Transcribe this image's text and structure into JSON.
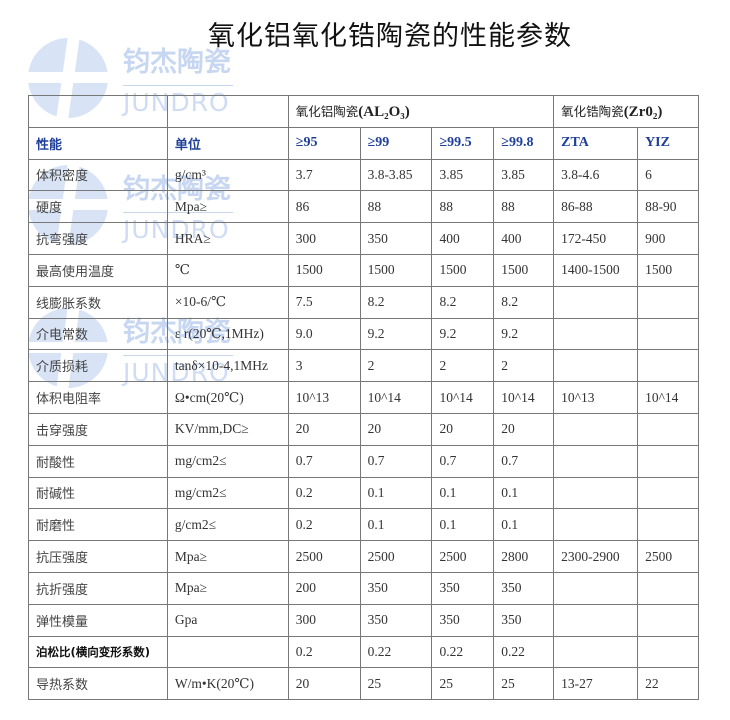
{
  "title": "氧化铝氧化锆陶瓷的性能参数",
  "watermark": {
    "cn": "钧杰陶瓷",
    "en": "JUNDRO"
  },
  "groups": {
    "alumina": "氧化铝陶瓷",
    "alumina_formula": "(AL₂O₃)",
    "zirconia": "氧化锆陶瓷",
    "zirconia_formula": "(Zr0₂)"
  },
  "header": [
    "性能",
    "单位",
    "≥95",
    "≥99",
    "≥99.5",
    "≥99.8",
    "ZTA",
    "YIZ"
  ],
  "rows": [
    [
      "体积密度",
      "g/cm³",
      "3.7",
      "3.8-3.85",
      "3.85",
      "3.85",
      "3.8-4.6",
      "6"
    ],
    [
      "硬度",
      "Mpa≥",
      "86",
      "88",
      "88",
      "88",
      "86-88",
      "88-90"
    ],
    [
      "抗弯强度",
      "HRA≥",
      "300",
      "350",
      "400",
      "400",
      "172-450",
      "900"
    ],
    [
      "最高使用温度",
      "℃",
      "1500",
      "1500",
      "1500",
      "1500",
      "1400-1500",
      "1500"
    ],
    [
      "线膨胀系数",
      "×10-6/℃",
      "7.5",
      "8.2",
      "8.2",
      "8.2",
      "",
      ""
    ],
    [
      "介电常数",
      "ε r(20℃,1MHz)",
      "9.0",
      "9.2",
      "9.2",
      "9.2",
      "",
      ""
    ],
    [
      "介质损耗",
      "tanδ×10-4,1MHz",
      "3",
      "2",
      "2",
      "2",
      "",
      ""
    ],
    [
      "体积电阻率",
      "Ω•cm(20℃)",
      "10^13",
      "10^14",
      "10^14",
      "10^14",
      "10^13",
      "10^14"
    ],
    [
      "击穿强度",
      "KV/mm,DC≥",
      "20",
      "20",
      "20",
      "20",
      "",
      ""
    ],
    [
      "耐酸性",
      "mg/cm2≤",
      "0.7",
      "0.7",
      "0.7",
      "0.7",
      "",
      ""
    ],
    [
      "耐碱性",
      "mg/cm2≤",
      "0.2",
      "0.1",
      "0.1",
      "0.1",
      "",
      ""
    ],
    [
      "耐磨性",
      "g/cm2≤",
      "0.2",
      "0.1",
      "0.1",
      "0.1",
      "",
      ""
    ],
    [
      "抗压强度",
      "Mpa≥",
      "2500",
      "2500",
      "2500",
      "2800",
      "2300-2900",
      "2500"
    ],
    [
      "抗折强度",
      "Mpa≥",
      "200",
      "350",
      "350",
      "350",
      "",
      ""
    ],
    [
      "弹性模量",
      "Gpa",
      "300",
      "350",
      "350",
      "350",
      "",
      ""
    ],
    [
      "泊松比(横向变形系数)",
      "",
      "0.2",
      "0.22",
      "0.22",
      "0.22",
      "",
      ""
    ],
    [
      "导热系数",
      "W/m•K(20℃)",
      "20",
      "25",
      "25",
      "25",
      "13-27",
      "22"
    ]
  ]
}
